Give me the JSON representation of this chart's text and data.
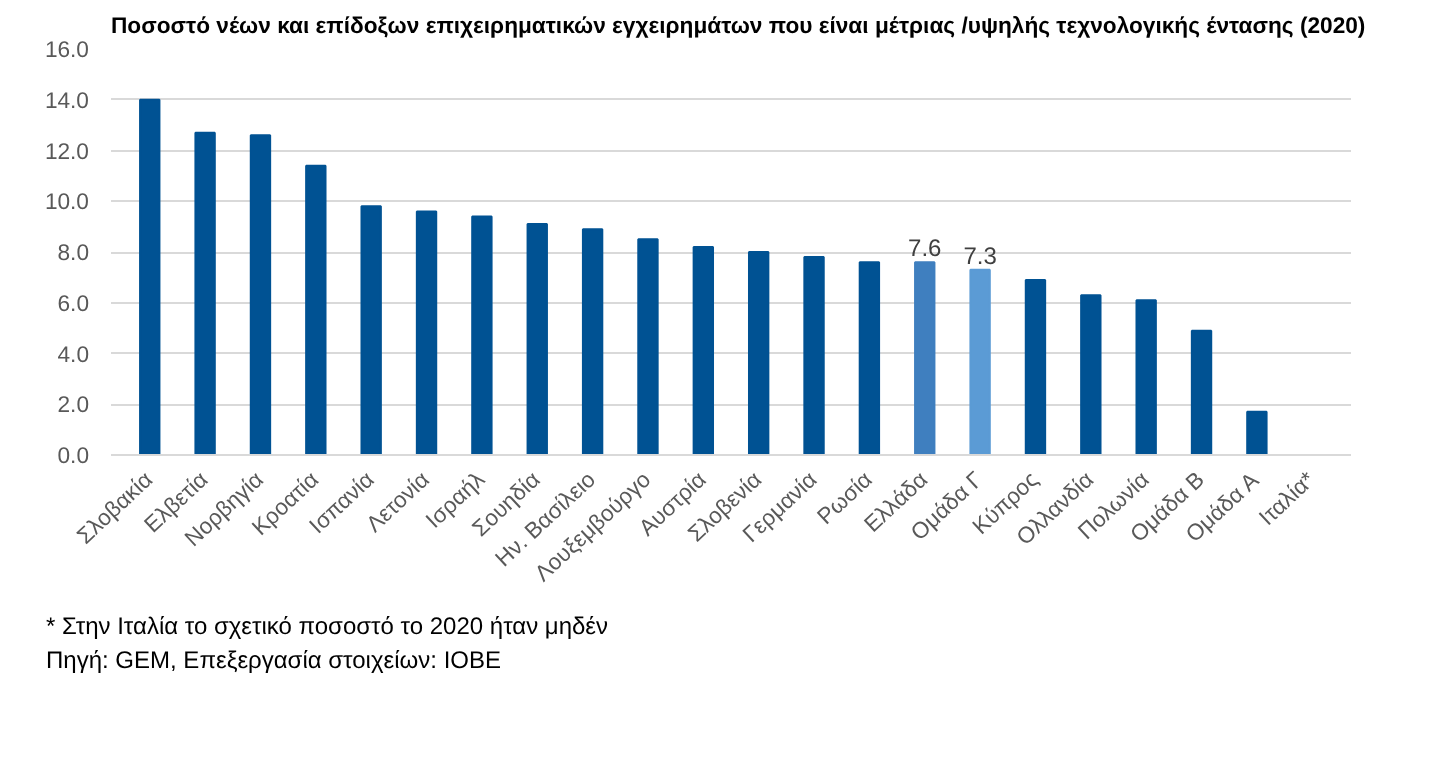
{
  "chart_data": {
    "type": "bar",
    "title": "Ποσοστό νέων και επίδοξων επιχειρηματικών εγχειρημάτων που είναι μέτριας /υψηλής τεχνολογικής έντασης (2020)",
    "categories": [
      "Σλοβακία",
      "Ελβετία",
      "Νορβηγία",
      "Κροατία",
      "Ισπανία",
      "Λετονία",
      "Ισραήλ",
      "Σουηδία",
      "Ην. Βασίλειο",
      "Λουξεμβούργο",
      "Αυστρία",
      "Σλοβενία",
      "Γερμανία",
      "Ρωσία",
      "Ελλάδα",
      "Ομάδα Γ",
      "Κύπρος",
      "Ολλανδία",
      "Πολωνία",
      "Ομάδα Β",
      "Ομάδα Α",
      "Ιταλία*"
    ],
    "values": [
      14.0,
      12.7,
      12.6,
      11.4,
      9.8,
      9.6,
      9.4,
      9.1,
      8.9,
      8.5,
      8.2,
      8.0,
      7.8,
      7.6,
      7.6,
      7.3,
      6.9,
      6.3,
      6.1,
      4.9,
      1.7,
      0
    ],
    "value_labels": [
      null,
      null,
      null,
      null,
      null,
      null,
      null,
      null,
      null,
      null,
      null,
      null,
      null,
      null,
      "7.6",
      "7.3",
      null,
      null,
      null,
      null,
      null,
      null
    ],
    "colors": [
      "#005293",
      "#005293",
      "#005293",
      "#005293",
      "#005293",
      "#005293",
      "#005293",
      "#005293",
      "#005293",
      "#005293",
      "#005293",
      "#005293",
      "#005293",
      "#005293",
      "#3f7fbf",
      "#5b9bd5",
      "#005293",
      "#005293",
      "#005293",
      "#005293",
      "#005293",
      "#005293"
    ],
    "ylim": [
      0,
      16
    ],
    "yticks": [
      {
        "value": 0,
        "label": "0.0"
      },
      {
        "value": 2,
        "label": "2.0"
      },
      {
        "value": 4,
        "label": "4.0"
      },
      {
        "value": 6,
        "label": "6.0"
      },
      {
        "value": 8,
        "label": "8.0"
      },
      {
        "value": 10,
        "label": "10.0"
      },
      {
        "value": 12,
        "label": "12.0"
      },
      {
        "value": 14,
        "label": "14.0"
      },
      {
        "value": 16,
        "label": "16.0"
      }
    ],
    "grid": "y",
    "annotations": [
      "* Στην Ιταλία το σχετικό ποσοστό το 2020 ήταν μηδέν",
      "Πηγή: GEM, Επεξεργασία στοιχείων: IOBE"
    ]
  }
}
